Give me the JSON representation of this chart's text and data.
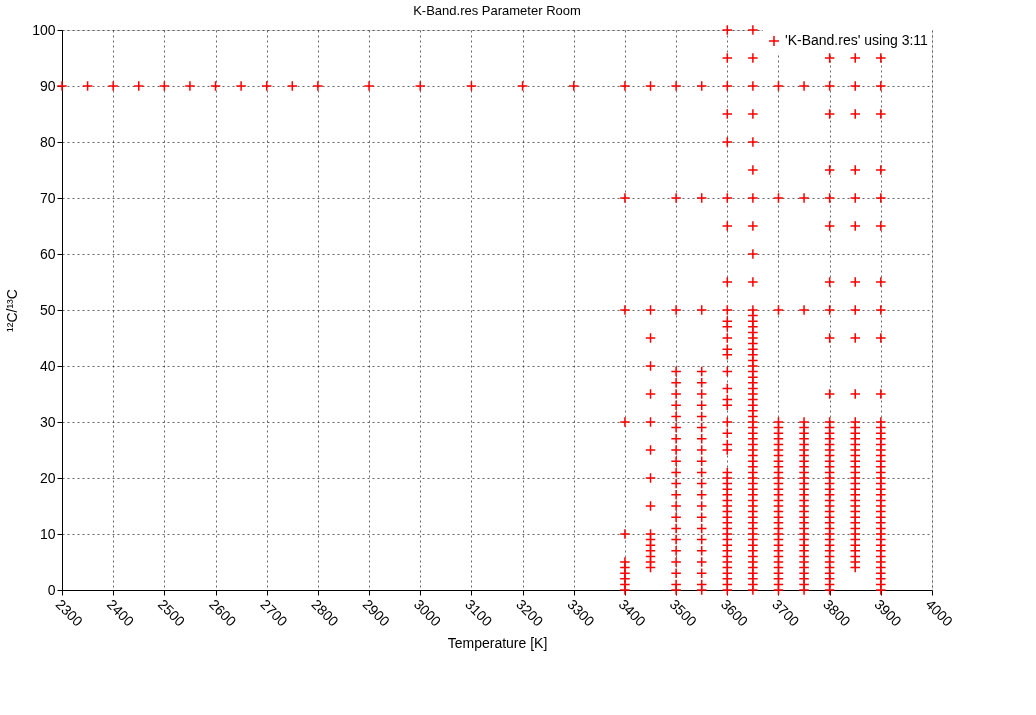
{
  "chart_data": {
    "type": "scatter",
    "title": "K-Band.res Parameter Room",
    "xlabel": "Temperature [K]",
    "ylabel": "¹²C/¹³C",
    "xlim": [
      2300,
      4000
    ],
    "xticks": [
      2300,
      2400,
      2500,
      2600,
      2700,
      2800,
      2900,
      3000,
      3100,
      3200,
      3300,
      3400,
      3500,
      3600,
      3700,
      3800,
      3900,
      4000
    ],
    "ylim": [
      0,
      100
    ],
    "yticks": [
      0,
      10,
      20,
      30,
      40,
      50,
      60,
      70,
      80,
      90,
      100
    ],
    "grid": true,
    "legend": "top right",
    "marker": "cross",
    "series": [
      {
        "name": "'K-Band.res' using 3:11",
        "color": "#ff0000",
        "x": [
          2300,
          2350,
          2400,
          2450,
          2500,
          2550,
          2600,
          2650,
          2700,
          2750,
          2800,
          2900,
          3000,
          3100,
          3200,
          3300,
          3400,
          3400,
          3400,
          3400,
          3400,
          3400,
          3400,
          3400,
          3400,
          3400,
          3400,
          3450,
          3450,
          3450,
          3450,
          3450,
          3450,
          3450,
          3450,
          3450,
          3450,
          3450,
          3450,
          3450,
          3450,
          3450,
          3450,
          3500,
          3500,
          3500,
          3500,
          3500,
          3500,
          3500,
          3500,
          3500,
          3500,
          3500,
          3500,
          3500,
          3500,
          3500,
          3500,
          3500,
          3500,
          3500,
          3500,
          3500,
          3500,
          3500,
          3500,
          3550,
          3550,
          3550,
          3550,
          3550,
          3550,
          3550,
          3550,
          3550,
          3550,
          3550,
          3550,
          3550,
          3550,
          3550,
          3550,
          3550,
          3550,
          3550,
          3550,
          3550,
          3550,
          3550,
          3550,
          3600,
          3600,
          3600,
          3600,
          3600,
          3600,
          3600,
          3600,
          3600,
          3600,
          3600,
          3600,
          3600,
          3600,
          3600,
          3600,
          3600,
          3600,
          3600,
          3600,
          3600,
          3600,
          3600,
          3600,
          3600,
          3600,
          3600,
          3600,
          3600,
          3600,
          3600,
          3600,
          3600,
          3600,
          3600,
          3600,
          3600,
          3600,
          3600,
          3600,
          3600,
          3600,
          3600,
          3600,
          3650,
          3650,
          3650,
          3650,
          3650,
          3650,
          3650,
          3650,
          3650,
          3650,
          3650,
          3650,
          3650,
          3650,
          3650,
          3650,
          3650,
          3650,
          3650,
          3650,
          3650,
          3650,
          3650,
          3650,
          3650,
          3650,
          3650,
          3650,
          3650,
          3650,
          3650,
          3650,
          3650,
          3650,
          3650,
          3650,
          3650,
          3650,
          3650,
          3650,
          3650,
          3650,
          3650,
          3650,
          3650,
          3650,
          3650,
          3650,
          3650,
          3650,
          3650,
          3650,
          3650,
          3650,
          3650,
          3650,
          3650,
          3650,
          3650,
          3650,
          3650,
          3700,
          3700,
          3700,
          3700,
          3700,
          3700,
          3700,
          3700,
          3700,
          3700,
          3700,
          3700,
          3700,
          3700,
          3700,
          3700,
          3700,
          3700,
          3700,
          3700,
          3700,
          3700,
          3700,
          3700,
          3700,
          3700,
          3700,
          3700,
          3700,
          3700,
          3700,
          3700,
          3700,
          3700,
          3750,
          3750,
          3750,
          3750,
          3750,
          3750,
          3750,
          3750,
          3750,
          3750,
          3750,
          3750,
          3750,
          3750,
          3750,
          3750,
          3750,
          3750,
          3750,
          3750,
          3750,
          3750,
          3750,
          3750,
          3750,
          3750,
          3750,
          3750,
          3750,
          3750,
          3750,
          3750,
          3750,
          3750,
          3800,
          3800,
          3800,
          3800,
          3800,
          3800,
          3800,
          3800,
          3800,
          3800,
          3800,
          3800,
          3800,
          3800,
          3800,
          3800,
          3800,
          3800,
          3800,
          3800,
          3800,
          3800,
          3800,
          3800,
          3800,
          3800,
          3800,
          3800,
          3800,
          3800,
          3800,
          3800,
          3800,
          3800,
          3800,
          3800,
          3800,
          3800,
          3800,
          3800,
          3800,
          3850,
          3850,
          3850,
          3850,
          3850,
          3850,
          3850,
          3850,
          3850,
          3850,
          3850,
          3850,
          3850,
          3850,
          3850,
          3850,
          3850,
          3850,
          3850,
          3850,
          3850,
          3850,
          3850,
          3850,
          3850,
          3850,
          3850,
          3850,
          3850,
          3850,
          3850,
          3850,
          3850,
          3850,
          3850,
          3850,
          3850,
          3900,
          3900,
          3900,
          3900,
          3900,
          3900,
          3900,
          3900,
          3900,
          3900,
          3900,
          3900,
          3900,
          3900,
          3900,
          3900,
          3900,
          3900,
          3900,
          3900,
          3900,
          3900,
          3900,
          3900,
          3900,
          3900,
          3900,
          3900,
          3900,
          3900,
          3900,
          3900,
          3900,
          3900,
          3900,
          3900,
          3900,
          3900,
          3900,
          3900,
          3900
        ],
        "values": [
          90,
          90,
          90,
          90,
          90,
          90,
          90,
          90,
          90,
          90,
          90,
          90,
          90,
          90,
          90,
          90,
          0,
          1,
          2,
          3,
          4,
          5,
          10,
          30,
          50,
          70,
          90,
          4,
          5,
          6,
          7,
          8,
          9,
          10,
          15,
          20,
          25,
          30,
          35,
          40,
          45,
          50,
          90,
          0,
          1,
          3,
          5,
          7,
          9,
          11,
          13,
          15,
          17,
          19,
          21,
          23,
          25,
          27,
          29,
          31,
          33,
          35,
          37,
          39,
          50,
          70,
          90,
          0,
          1,
          3,
          5,
          7,
          9,
          11,
          13,
          15,
          17,
          19,
          21,
          23,
          25,
          27,
          29,
          31,
          33,
          35,
          37,
          39,
          50,
          70,
          90,
          0,
          1,
          2,
          3,
          4,
          5,
          6,
          7,
          8,
          9,
          10,
          11,
          12,
          13,
          14,
          15,
          16,
          17,
          18,
          19,
          20,
          21,
          25,
          26,
          28,
          30,
          33,
          34,
          36,
          39,
          42,
          43,
          45,
          47,
          48,
          50,
          55,
          65,
          70,
          80,
          85,
          90,
          95,
          100,
          0,
          1,
          2,
          3,
          4,
          5,
          6,
          7,
          8,
          9,
          10,
          11,
          12,
          13,
          14,
          15,
          16,
          17,
          18,
          19,
          20,
          21,
          22,
          23,
          24,
          25,
          26,
          27,
          28,
          29,
          30,
          31,
          32,
          33,
          34,
          35,
          36,
          37,
          38,
          39,
          40,
          41,
          42,
          43,
          44,
          45,
          46,
          47,
          48,
          49,
          50,
          55,
          60,
          65,
          70,
          75,
          80,
          85,
          90,
          95,
          100,
          0,
          1,
          2,
          3,
          4,
          5,
          6,
          7,
          8,
          9,
          10,
          11,
          12,
          13,
          14,
          15,
          16,
          17,
          18,
          19,
          20,
          21,
          22,
          23,
          24,
          25,
          26,
          27,
          28,
          29,
          30,
          50,
          70,
          90,
          0,
          1,
          2,
          3,
          4,
          5,
          6,
          7,
          8,
          9,
          10,
          11,
          12,
          13,
          14,
          15,
          16,
          17,
          18,
          19,
          20,
          21,
          22,
          23,
          24,
          25,
          26,
          27,
          28,
          29,
          30,
          50,
          70,
          90,
          0,
          1,
          2,
          3,
          4,
          5,
          6,
          7,
          8,
          9,
          10,
          11,
          12,
          13,
          14,
          15,
          16,
          17,
          18,
          19,
          20,
          21,
          22,
          23,
          24,
          25,
          26,
          27,
          28,
          29,
          30,
          35,
          45,
          50,
          55,
          65,
          70,
          75,
          85,
          90,
          95,
          4,
          5,
          6,
          7,
          8,
          9,
          10,
          11,
          12,
          13,
          14,
          15,
          16,
          17,
          18,
          19,
          20,
          21,
          22,
          23,
          24,
          25,
          26,
          27,
          28,
          29,
          30,
          35,
          45,
          50,
          55,
          65,
          70,
          75,
          85,
          90,
          95,
          0,
          1,
          2,
          3,
          4,
          5,
          6,
          7,
          8,
          9,
          10,
          11,
          12,
          13,
          14,
          15,
          16,
          17,
          18,
          19,
          20,
          21,
          22,
          23,
          24,
          25,
          26,
          27,
          28,
          29,
          30,
          35,
          45,
          50,
          55,
          65,
          70,
          75,
          85,
          90,
          95
        ]
      }
    ]
  }
}
